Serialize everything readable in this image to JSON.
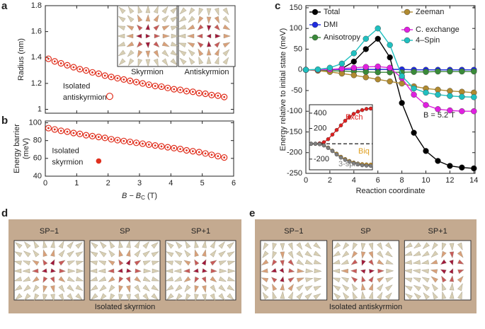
{
  "panel_labels": [
    "a",
    "b",
    "c",
    "d",
    "e"
  ],
  "panel_a_insets": [
    "Skyrmion",
    "Antiskyrmion"
  ],
  "chart_data": [
    {
      "type": "scatter",
      "ylabel": "Radius (nm)",
      "xlim": [
        0,
        6
      ],
      "ylim": [
        0.97,
        1.8
      ],
      "yticks": [
        1,
        1.2,
        1.4,
        1.6,
        1.8
      ],
      "x": [
        0.1,
        0.3,
        0.5,
        0.7,
        0.9,
        1.1,
        1.3,
        1.5,
        1.7,
        1.9,
        2.1,
        2.3,
        2.5,
        2.7,
        2.9,
        3.1,
        3.3,
        3.5,
        3.7,
        3.9,
        4.1,
        4.3,
        4.5,
        4.7,
        4.9,
        5.1,
        5.3,
        5.5,
        5.7
      ],
      "series": [
        {
          "color": "#e0301e",
          "values": [
            1.39,
            1.37,
            1.355,
            1.34,
            1.325,
            1.31,
            1.3,
            1.285,
            1.275,
            1.26,
            1.25,
            1.24,
            1.23,
            1.22,
            1.21,
            1.2,
            1.19,
            1.18,
            1.175,
            1.165,
            1.155,
            1.15,
            1.14,
            1.135,
            1.125,
            1.12,
            1.11,
            1.105,
            1.095
          ]
        }
      ],
      "points": [
        {
          "label": [
            "Isolated",
            "antiskyrmion"
          ],
          "x": 2.05,
          "y": 1.1,
          "filled": false
        }
      ]
    },
    {
      "type": "scatter",
      "ylabel": [
        "Energy barrier",
        "(meV)"
      ],
      "xlabel": {
        "main": "B − B",
        "sub": "C",
        "unit": " (T)"
      },
      "xlim": [
        0,
        6
      ],
      "xticks": [
        0,
        1,
        2,
        3,
        4,
        5,
        6
      ],
      "ylim": [
        40,
        102
      ],
      "yticks": [
        40,
        60,
        80,
        100
      ],
      "x": [
        0.1,
        0.3,
        0.5,
        0.7,
        0.9,
        1.1,
        1.3,
        1.5,
        1.7,
        1.9,
        2.1,
        2.3,
        2.5,
        2.7,
        2.9,
        3.1,
        3.3,
        3.5,
        3.7,
        3.9,
        4.1,
        4.3,
        4.5,
        4.7,
        4.9,
        5.1,
        5.3,
        5.5,
        5.7
      ],
      "series": [
        {
          "color": "#e0301e",
          "values": [
            94,
            92.5,
            91,
            90,
            88.5,
            87.5,
            86,
            85,
            84,
            83,
            81.5,
            80.5,
            79.5,
            78.5,
            77.5,
            76.5,
            75.5,
            74.5,
            73.5,
            72.5,
            71.5,
            70.5,
            69,
            68,
            67,
            65.5,
            64,
            62.5,
            61
          ]
        }
      ],
      "points": [
        {
          "label": [
            "Isolated",
            "skyrmion"
          ],
          "x": 1.7,
          "y": 57,
          "filled": true
        }
      ]
    },
    {
      "type": "line",
      "ylabel": "Energy relative to initial state (meV)",
      "xlabel": "Reaction coordinate",
      "annotation": "B = 5.2 T",
      "xlim": [
        0,
        14.1
      ],
      "xticks": [
        0,
        2,
        4,
        6,
        8,
        10,
        12,
        14
      ],
      "ylim": [
        -250,
        155
      ],
      "yticks": [
        -250,
        -200,
        -150,
        -100,
        -50,
        0,
        50,
        100,
        150
      ],
      "x": [
        0,
        1,
        2,
        3,
        4,
        5,
        6,
        7,
        8,
        9,
        10,
        11,
        12,
        13,
        14
      ],
      "series": [
        {
          "name": "Total",
          "color": "#000000",
          "values": [
            0,
            0,
            0,
            3,
            20,
            50,
            75,
            30,
            -80,
            -152,
            -196,
            -220,
            -232,
            -236,
            -238
          ]
        },
        {
          "name": "DMI",
          "color": "#1e2be0",
          "values": [
            0,
            0,
            1,
            1,
            1,
            1,
            1,
            1,
            1,
            0,
            0,
            0,
            0,
            0,
            0
          ]
        },
        {
          "name": "Anisotropy",
          "color": "#3a8a3a",
          "values": [
            0,
            -1,
            -2,
            -3,
            -4,
            -5,
            -6,
            -6,
            -6,
            -5,
            -5,
            -4,
            -4,
            -4,
            -4
          ]
        },
        {
          "name": "Zeeman",
          "color": "#b08a30",
          "values": [
            0,
            -2,
            -5,
            -9,
            -13,
            -18,
            -23,
            -28,
            -33,
            -40,
            -45,
            -48,
            -51,
            -53,
            -55
          ]
        },
        {
          "name": "C. exchange",
          "color": "#e020e0",
          "values": [
            0,
            0,
            1,
            3,
            5,
            7,
            8,
            5,
            -20,
            -60,
            -85,
            -95,
            -98,
            -100,
            -100
          ]
        },
        {
          "name": "4–Spin",
          "color": "#20c0c0",
          "values": [
            0,
            1,
            5,
            15,
            40,
            75,
            100,
            60,
            -15,
            -45,
            -55,
            -60,
            -63,
            -65,
            -66
          ]
        }
      ]
    },
    {
      "type": "line",
      "xlim": [
        -0.4,
        14.4
      ],
      "ylim": [
        -340,
        510
      ],
      "yticks": [
        -200,
        200,
        400
      ],
      "hline": 0,
      "x": [
        0,
        1,
        2,
        3,
        4,
        5,
        6,
        7,
        8,
        9,
        10,
        11,
        12,
        13,
        14
      ],
      "series": [
        {
          "name": "Exch",
          "color": "#e02020",
          "values": [
            0,
            0,
            5,
            20,
            60,
            120,
            180,
            240,
            300,
            350,
            390,
            420,
            440,
            455,
            460
          ]
        },
        {
          "name": "Biq",
          "color": "#e0a020",
          "values": [
            0,
            0,
            -5,
            -20,
            -50,
            -90,
            -130,
            -170,
            -200,
            -225,
            -245,
            -258,
            -266,
            -270,
            -272
          ]
        },
        {
          "name": "3-spin",
          "color": "#808080",
          "values": [
            0,
            0,
            -5,
            -22,
            -55,
            -95,
            -140,
            -180,
            -210,
            -235,
            -255,
            -270,
            -280,
            -285,
            -288
          ]
        }
      ]
    }
  ],
  "panel_d": {
    "frames": [
      "SP−1",
      "SP",
      "SP+1"
    ],
    "caption": "Isolated skyrmion"
  },
  "panel_e": {
    "frames": [
      "SP−1",
      "SP",
      "SP+1"
    ],
    "caption": "Isolated antiskyrmion"
  }
}
